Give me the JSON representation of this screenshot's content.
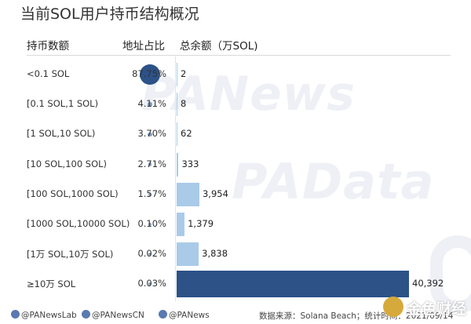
{
  "watermarks": [
    "PANews",
    "PAData"
  ],
  "title": "当前SOL用户持币结构概况",
  "headers": {
    "range": "持币数额",
    "share": "地址占比",
    "amount": "总余额（万SOL)"
  },
  "chart_data": {
    "type": "table",
    "title": "当前SOL用户持币结构概况",
    "columns": [
      "持币数额",
      "地址占比",
      "总余额（万SOL)"
    ],
    "rows": [
      {
        "range": "<0.1 SOL",
        "share": 87.75,
        "share_label": "87.75%",
        "amount": 2,
        "amount_label": "2"
      },
      {
        "range": "[0.1 SOL,1 SOL)",
        "share": 4.11,
        "share_label": "4.11%",
        "amount": 8,
        "amount_label": "8"
      },
      {
        "range": "[1 SOL,10 SOL)",
        "share": 3.7,
        "share_label": "3.70%",
        "amount": 62,
        "amount_label": "62"
      },
      {
        "range": "[10 SOL,100 SOL)",
        "share": 2.71,
        "share_label": "2.71%",
        "amount": 333,
        "amount_label": "333"
      },
      {
        "range": "[100 SOL,1000 SOL)",
        "share": 1.57,
        "share_label": "1.57%",
        "amount": 3954,
        "amount_label": "3,954"
      },
      {
        "range": "[1000 SOL,10000 SOL)",
        "share": 0.1,
        "share_label": "0.10%",
        "amount": 1379,
        "amount_label": "1,379"
      },
      {
        "range": "[1万 SOL,10万 SOL)",
        "share": 0.02,
        "share_label": "0.02%",
        "amount": 3838,
        "amount_label": "3,838"
      },
      {
        "range": "≥10万 SOL",
        "share": 0.03,
        "share_label": "0.03%",
        "amount": 40392,
        "amount_label": "40,392"
      }
    ],
    "amount_max": 40392,
    "colors": {
      "dot": "#2c5288",
      "bar_light": "#a9cbe8",
      "bar_dark": "#2c5288"
    },
    "grid": false
  },
  "footer": {
    "weibo": "@PANewsLab",
    "twitter": "@PANewsCN",
    "wechat": "@PANews",
    "source": "数据来源：Solana Beach；统计时间：2021/09/14"
  },
  "logo_text": "金色财经"
}
